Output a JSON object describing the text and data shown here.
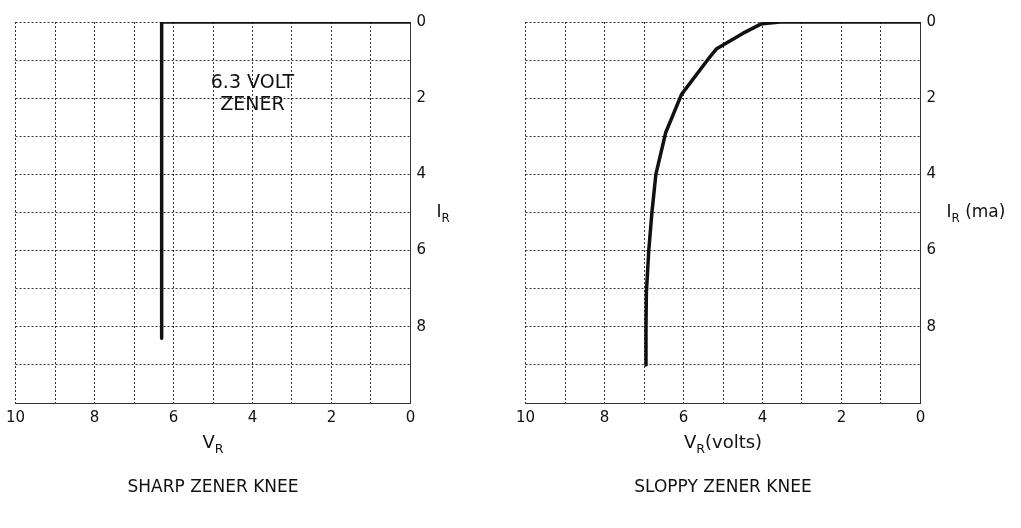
{
  "chart_data": [
    {
      "type": "line",
      "title": "SHARP ZENER KNEE",
      "xlabel": "V$_{R}$",
      "ylabel": "I$_{R}$",
      "annotations": [
        "6.3 VOLT\nZENER"
      ],
      "x": [
        0,
        6.3,
        6.3
      ],
      "values": [
        0,
        0,
        8.3
      ],
      "color": "#111111",
      "xlim": [
        10,
        0
      ],
      "xticks": [
        10,
        {
          "value": 9,
          "label": null
        },
        8,
        {
          "value": 7,
          "label": null
        },
        6,
        {
          "value": 5,
          "label": null
        },
        4,
        {
          "value": 3,
          "label": null
        },
        2,
        {
          "value": 1,
          "label": null
        },
        0
      ],
      "ylim": [
        10,
        0
      ],
      "yticks": [
        0,
        {
          "value": 1,
          "label": null
        },
        2,
        {
          "value": 3,
          "label": null
        },
        4,
        {
          "value": 5,
          "label": null
        },
        6,
        {
          "value": 7,
          "label": null
        },
        8,
        {
          "value": 9,
          "label": null
        },
        {
          "value": 10,
          "label": null
        }
      ],
      "grid": true,
      "legend": false,
      "marker": "none",
      "line_style": "solid"
    },
    {
      "type": "line",
      "title": "SLOPPY ZENER KNEE",
      "xlabel": "V$_{R}$(volts)",
      "ylabel": "I$_{R}$ (ma)",
      "x": [
        0,
        3.55,
        4.03,
        4.5,
        5.16,
        5.32,
        6.05,
        6.45,
        6.7,
        6.8,
        6.88,
        6.94,
        6.95,
        6.95
      ],
      "values": [
        0,
        0,
        0.05,
        0.3,
        0.7,
        0.9,
        1.9,
        2.9,
        4.0,
        5.0,
        6.0,
        7.1,
        8.0,
        9.0
      ],
      "color": "#111111",
      "xlim": [
        10,
        0
      ],
      "xticks": [
        10,
        {
          "value": 9,
          "label": null
        },
        8,
        {
          "value": 7,
          "label": null
        },
        6,
        {
          "value": 5,
          "label": null
        },
        4,
        {
          "value": 3,
          "label": null
        },
        2,
        {
          "value": 1,
          "label": null
        },
        0
      ],
      "ylim": [
        10,
        0
      ],
      "yticks": [
        0,
        {
          "value": 1,
          "label": null
        },
        2,
        {
          "value": 3,
          "label": null
        },
        4,
        {
          "value": 5,
          "label": null
        },
        6,
        {
          "value": 7,
          "label": null
        },
        8,
        {
          "value": 9,
          "label": null
        },
        {
          "value": 10,
          "label": null
        }
      ],
      "grid": true,
      "legend": false,
      "marker": "none",
      "line_style": "solid"
    }
  ]
}
